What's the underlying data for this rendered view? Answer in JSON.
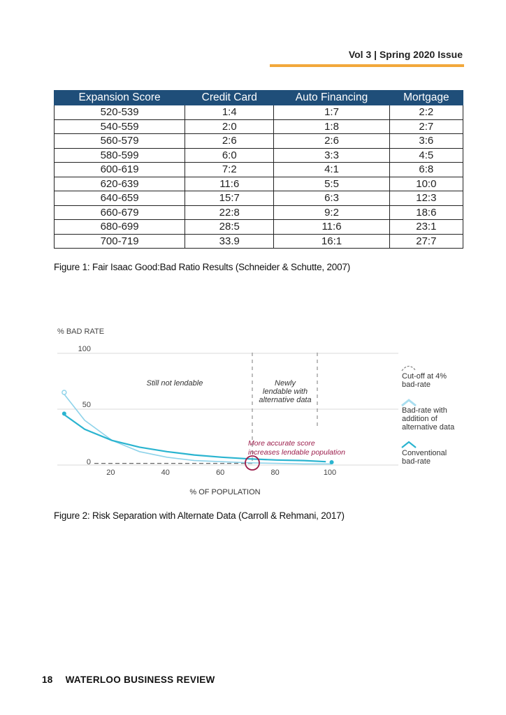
{
  "header": {
    "issue": "Vol 3 | Spring 2020 Issue"
  },
  "table": {
    "headers": [
      "Expansion Score",
      "Credit Card",
      "Auto Financing",
      "Mortgage"
    ],
    "rows": [
      [
        "520-539",
        "1:4",
        "1:7",
        "2:2"
      ],
      [
        "540-559",
        "2:0",
        "1:8",
        "2:7"
      ],
      [
        "560-579",
        "2:6",
        "2:6",
        "3:6"
      ],
      [
        "580-599",
        "6:0",
        "3:3",
        "4:5"
      ],
      [
        "600-619",
        "7:2",
        "4:1",
        "6:8"
      ],
      [
        "620-639",
        "11:6",
        "5:5",
        "10:0"
      ],
      [
        "640-659",
        "15:7",
        "6:3",
        "12:3"
      ],
      [
        "660-679",
        "22:8",
        "9:2",
        "18:6"
      ],
      [
        "680-699",
        "28:5",
        "11:6",
        "23:1"
      ],
      [
        "700-719",
        "33.9",
        "16:1",
        "27:7"
      ]
    ]
  },
  "caption1": "Figure 1: Fair Isaac Good:Bad Ratio Results (Schneider & Schutte, 2007)",
  "chart_data": {
    "type": "line",
    "ylabel": "% BAD RATE",
    "xlabel": "% OF POPULATION",
    "yticks": [
      "100",
      "50",
      "0"
    ],
    "xticks": [
      "20",
      "40",
      "60",
      "80",
      "100"
    ],
    "xlim": [
      0,
      100
    ],
    "ylim": [
      0,
      100
    ],
    "annotations": {
      "still_not_lendable": "Still not lendable",
      "newly_lendable": [
        "Newly",
        "lendable with",
        "alternative data"
      ],
      "more_accurate": [
        "More accurate score",
        "increases lendable population"
      ]
    },
    "legend": [
      {
        "label": [
          "Cut-off at 4%",
          "bad-rate"
        ],
        "color": "#888888"
      },
      {
        "label": [
          "Bad-rate with",
          "addition of",
          "alternative data"
        ],
        "color": "#a9def0"
      },
      {
        "label": [
          "Conventional",
          "bad-rate"
        ],
        "color": "#2ab4d0"
      }
    ],
    "series": [
      {
        "name": "Bad-rate with addition of alternative data",
        "color": "#8fd3ea",
        "x": [
          2,
          10,
          20,
          30,
          40,
          50,
          60,
          70,
          80,
          90,
          100
        ],
        "y": [
          65,
          40,
          22,
          12,
          7,
          4,
          3,
          2,
          1.5,
          1,
          1
        ]
      },
      {
        "name": "Conventional bad-rate",
        "color": "#2ab4d0",
        "x": [
          2,
          10,
          20,
          30,
          40,
          50,
          60,
          70,
          80,
          90,
          98
        ],
        "y": [
          46,
          32,
          22,
          16,
          12,
          9,
          7,
          5.5,
          4.5,
          4,
          3
        ]
      }
    ],
    "cutoff": 4,
    "markers": [
      60,
      93
    ]
  },
  "caption2": "Figure 2: Risk Separation with Alternate Data (Carroll & Rehmani, 2017)",
  "footer": {
    "page": "18",
    "publication": "WATERLOO BUSINESS REVIEW"
  }
}
